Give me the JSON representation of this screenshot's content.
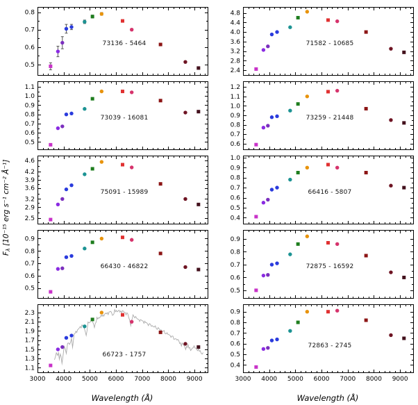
{
  "figure": {
    "ylabel": {
      "f": "F",
      "sub": "λ",
      "rest": " [10⁻¹⁵ erg s⁻¹ cm⁻² Å⁻¹]"
    },
    "xlabel": "Wavelength (Å)"
  },
  "chart_data": {
    "type": "scatter",
    "title": "",
    "xlabel": "Wavelength (Å)",
    "ylabel": "F_λ [10⁻¹⁵ erg s⁻¹ cm⁻² Å⁻¹]",
    "grid": false,
    "legend": "none",
    "xlim": [
      3000,
      9500
    ],
    "xticks": [
      3000,
      4000,
      5000,
      6000,
      7000,
      8000,
      9000
    ],
    "bands": {
      "x": [
        3500,
        3780,
        3950,
        4100,
        4300,
        4800,
        5100,
        5450,
        6250,
        6600,
        7700,
        8650,
        9150
      ],
      "colors": [
        "#c832c8",
        "#8a2be2",
        "#7b2fbe",
        "#2a3bdd",
        "#2a3bdd",
        "#1c9393",
        "#1e7d1e",
        "#e8930c",
        "#e03131",
        "#d6336c",
        "#8c1515",
        "#6e1423",
        "#43101c"
      ],
      "shapes": [
        "s",
        "o",
        "o",
        "o",
        "o",
        "o",
        "s",
        "o",
        "s",
        "o",
        "s",
        "o",
        "s"
      ]
    },
    "panels": [
      {
        "label": "73136 - 5464",
        "ylim": [
          0.44,
          0.83
        ],
        "yticks": [
          0.5,
          0.6,
          0.7,
          0.8
        ],
        "values": [
          0.49,
          0.575,
          0.625,
          0.705,
          0.715,
          0.745,
          0.775,
          0.79,
          0.75,
          0.7,
          0.615,
          0.515,
          0.48
        ],
        "errors": [
          0.02,
          0.03,
          0.035,
          0.025,
          0.015,
          0.01,
          0.008,
          0.008,
          0.006,
          0.006,
          0.005,
          0.005,
          0.005
        ]
      },
      {
        "label": "73039 - 16081",
        "ylim": [
          0.42,
          1.16
        ],
        "yticks": [
          0.5,
          0.6,
          0.7,
          0.8,
          0.9,
          1.0,
          1.1
        ],
        "values": [
          0.47,
          0.65,
          0.67,
          0.8,
          0.81,
          0.86,
          0.97,
          1.05,
          1.05,
          1.04,
          0.95,
          0.82,
          0.83
        ]
      },
      {
        "label": "75091 - 15989",
        "ylim": [
          2.3,
          4.78
        ],
        "yticks": [
          2.5,
          2.9,
          3.2,
          3.6,
          3.9,
          4.2,
          4.6
        ],
        "values": [
          2.45,
          3.0,
          3.2,
          3.55,
          3.7,
          4.1,
          4.3,
          4.55,
          4.45,
          4.35,
          3.75,
          3.2,
          3.0
        ]
      },
      {
        "label": "66430 - 46822",
        "ylim": [
          0.42,
          0.97
        ],
        "yticks": [
          0.5,
          0.6,
          0.7,
          0.8,
          0.9
        ],
        "values": [
          0.47,
          0.655,
          0.66,
          0.75,
          0.76,
          0.82,
          0.87,
          0.9,
          0.91,
          0.89,
          0.78,
          0.67,
          0.65
        ]
      },
      {
        "label": "66723 - 1757",
        "ylim": [
          1.0,
          2.48
        ],
        "yticks": [
          1.1,
          1.3,
          1.5,
          1.7,
          1.9,
          2.1,
          2.3
        ],
        "values": [
          1.15,
          1.5,
          1.55,
          1.75,
          1.8,
          2.0,
          2.15,
          2.3,
          2.25,
          2.1,
          1.87,
          1.62,
          1.55
        ],
        "spectrum": [
          [
            3650,
            1.3
          ],
          [
            3720,
            1.4
          ],
          [
            3770,
            1.36
          ],
          [
            3800,
            1.44
          ],
          [
            3835,
            1.28
          ],
          [
            3870,
            1.42
          ],
          [
            3935,
            1.2
          ],
          [
            3970,
            1.34
          ],
          [
            4020,
            1.56
          ],
          [
            4101,
            1.42
          ],
          [
            4150,
            1.66
          ],
          [
            4227,
            1.6
          ],
          [
            4300,
            1.72
          ],
          [
            4340,
            1.56
          ],
          [
            4400,
            1.82
          ],
          [
            4500,
            1.9
          ],
          [
            4600,
            1.96
          ],
          [
            4700,
            2.02
          ],
          [
            4780,
            1.98
          ],
          [
            4861,
            1.8
          ],
          [
            4930,
            2.06
          ],
          [
            5000,
            2.1
          ],
          [
            5080,
            2.12
          ],
          [
            5175,
            2.0
          ],
          [
            5270,
            2.16
          ],
          [
            5400,
            2.21
          ],
          [
            5500,
            2.24
          ],
          [
            5600,
            2.27
          ],
          [
            5700,
            2.29
          ],
          [
            5800,
            2.32
          ],
          [
            5890,
            2.24
          ],
          [
            5950,
            2.33
          ],
          [
            6050,
            2.34
          ],
          [
            6150,
            2.32
          ],
          [
            6250,
            2.33
          ],
          [
            6350,
            2.29
          ],
          [
            6450,
            2.27
          ],
          [
            6563,
            2.04
          ],
          [
            6650,
            2.23
          ],
          [
            6750,
            2.2
          ],
          [
            6870,
            2.14
          ],
          [
            7000,
            2.12
          ],
          [
            7100,
            2.09
          ],
          [
            7200,
            2.06
          ],
          [
            7350,
            2.02
          ],
          [
            7500,
            1.98
          ],
          [
            7650,
            1.94
          ],
          [
            7800,
            1.89
          ],
          [
            7950,
            1.84
          ],
          [
            8100,
            1.79
          ],
          [
            8250,
            1.73
          ],
          [
            8400,
            1.69
          ],
          [
            8498,
            1.58
          ],
          [
            8560,
            1.64
          ],
          [
            8662,
            1.5
          ],
          [
            8750,
            1.6
          ],
          [
            8850,
            1.47
          ],
          [
            8950,
            1.56
          ],
          [
            9050,
            1.52
          ],
          [
            9150,
            1.48
          ],
          [
            9250,
            1.44
          ],
          [
            9330,
            1.4
          ]
        ]
      },
      {
        "label": "71582 - 10685",
        "ylim": [
          2.2,
          5.05
        ],
        "yticks": [
          2.4,
          2.8,
          3.2,
          3.6,
          4.0,
          4.4,
          4.8
        ],
        "values": [
          2.45,
          3.25,
          3.4,
          3.9,
          4.0,
          4.2,
          4.6,
          4.85,
          4.5,
          4.45,
          4.0,
          3.3,
          3.15
        ]
      },
      {
        "label": "73259 - 21448",
        "ylim": [
          0.54,
          1.26
        ],
        "yticks": [
          0.6,
          0.7,
          0.8,
          0.9,
          1.0,
          1.1,
          1.2
        ],
        "values": [
          0.59,
          0.77,
          0.79,
          0.88,
          0.89,
          0.95,
          1.02,
          1.1,
          1.15,
          1.16,
          0.97,
          0.85,
          0.82
        ]
      },
      {
        "label": "66416 - 5807",
        "ylim": [
          0.34,
          1.02
        ],
        "yticks": [
          0.4,
          0.5,
          0.6,
          0.7,
          0.8,
          0.9,
          1.0
        ],
        "values": [
          0.41,
          0.55,
          0.58,
          0.68,
          0.7,
          0.78,
          0.85,
          0.9,
          0.93,
          0.9,
          0.85,
          0.72,
          0.7
        ]
      },
      {
        "label": "72875 - 16592",
        "ylim": [
          0.44,
          0.97
        ],
        "yticks": [
          0.5,
          0.6,
          0.7,
          0.8,
          0.9
        ],
        "values": [
          0.5,
          0.615,
          0.62,
          0.7,
          0.71,
          0.78,
          0.86,
          0.92,
          0.87,
          0.86,
          0.77,
          0.64,
          0.6
        ]
      },
      {
        "label": "72863 - 2745",
        "ylim": [
          0.33,
          0.97
        ],
        "yticks": [
          0.4,
          0.5,
          0.6,
          0.7,
          0.8,
          0.9
        ],
        "values": [
          0.38,
          0.55,
          0.56,
          0.63,
          0.64,
          0.72,
          0.8,
          0.9,
          0.9,
          0.91,
          0.82,
          0.68,
          0.65
        ]
      }
    ]
  }
}
